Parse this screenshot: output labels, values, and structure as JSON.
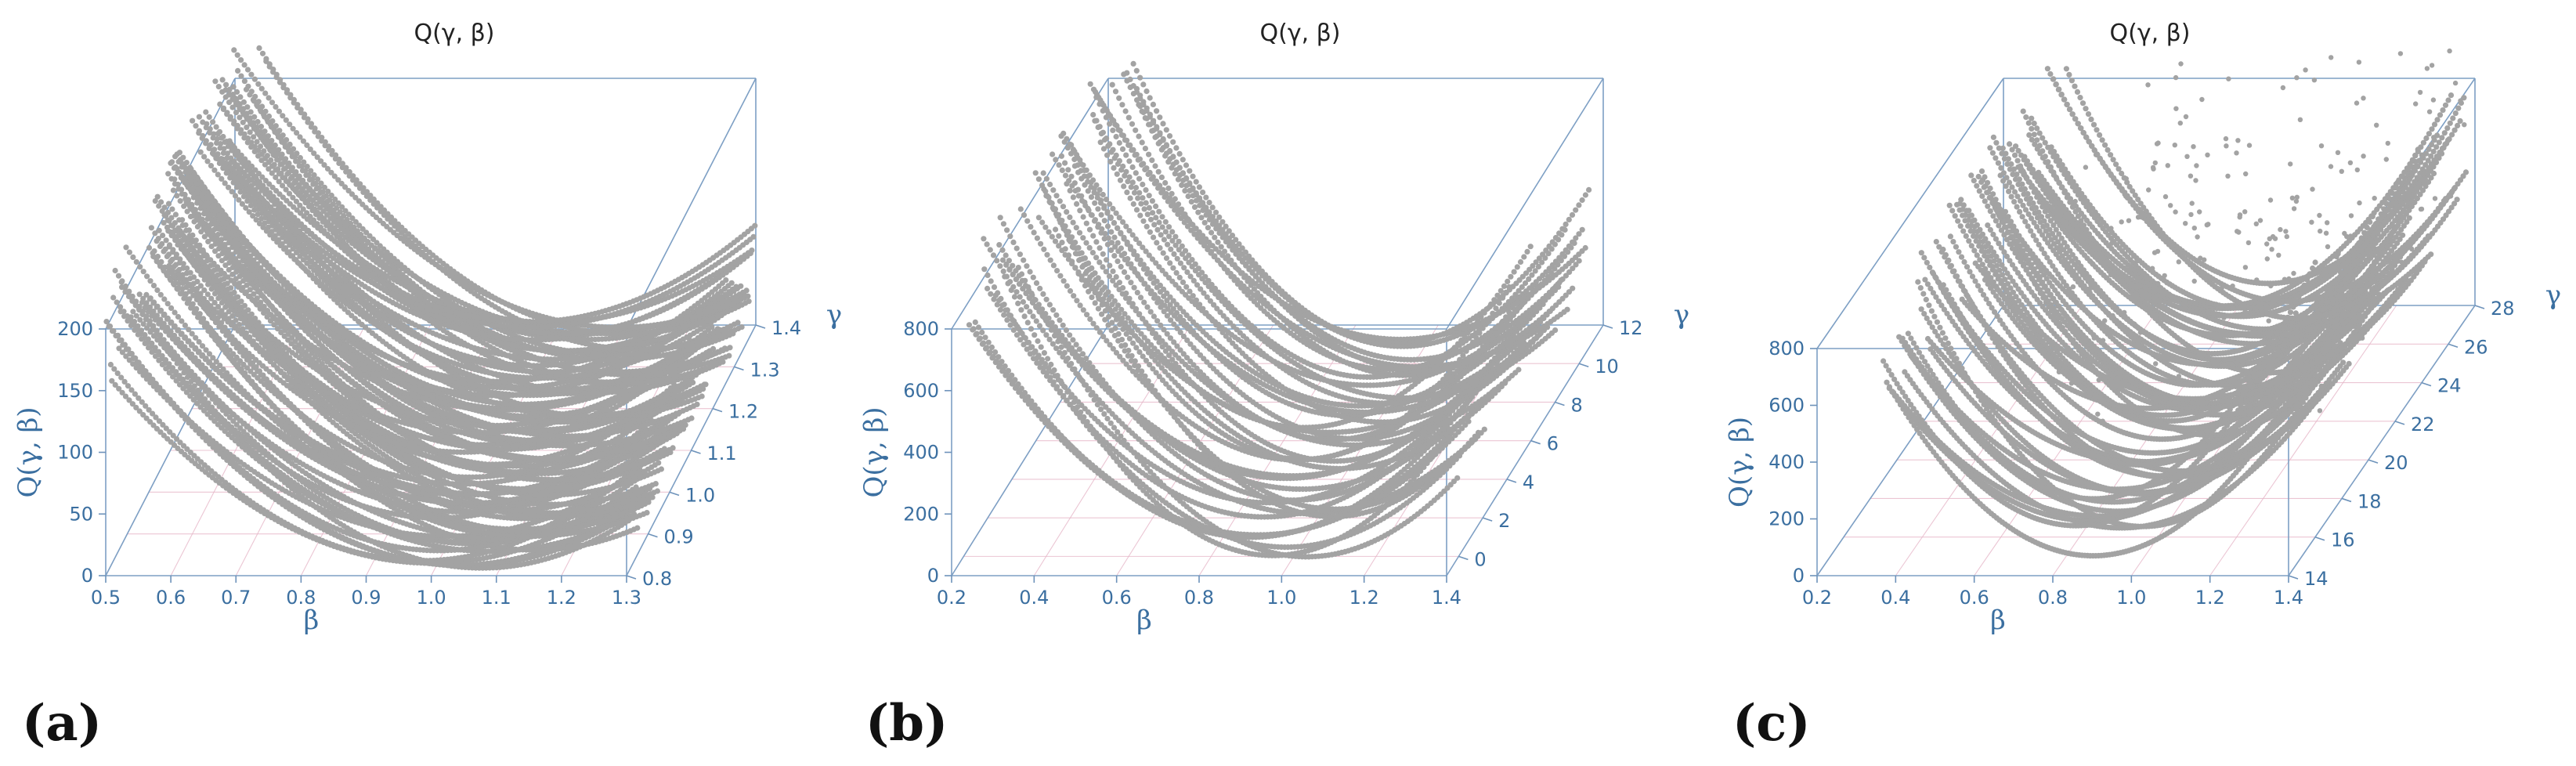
{
  "colors": {
    "axis": "#3b6fa0",
    "box": "#7d9fc4",
    "grid": "#e6b7c8",
    "points": "#a3a3a3"
  },
  "chart_data": [
    {
      "type": "scatter3d",
      "title": "Q(γ, β)",
      "panel_label": "(a)",
      "xlabel": "β",
      "ylabel": "γ",
      "zlabel": "Q(γ, β)",
      "xlim": [
        0.5,
        1.3
      ],
      "ylim": [
        0.8,
        1.4
      ],
      "zlim": [
        0,
        200
      ],
      "xticks": [
        0.5,
        0.6,
        0.7,
        0.8,
        0.9,
        1.0,
        1.1,
        1.2,
        1.3
      ],
      "yticks": [
        0.8,
        0.9,
        1.0,
        1.1,
        1.2,
        1.3,
        1.4
      ],
      "zticks": [
        0,
        50,
        100,
        150,
        200
      ],
      "surface": {
        "gamma_min": 0.8,
        "gamma_max": 1.4,
        "curve_count": 90,
        "beta_range": [
          0.5,
          1.3
        ],
        "min_beta": [
          0.95,
          1.15
        ],
        "min_Q": [
          0,
          12
        ],
        "curvature": [
          590,
          760
        ]
      }
    },
    {
      "type": "scatter3d",
      "title": "Q(γ, β)",
      "panel_label": "(b)",
      "xlabel": "β",
      "ylabel": "γ",
      "zlabel": "Q(γ, β)",
      "xlim": [
        0.2,
        1.4
      ],
      "ylim": [
        -1,
        12
      ],
      "zlim": [
        0,
        800
      ],
      "xticks": [
        0.2,
        0.4,
        0.6,
        0.8,
        1.0,
        1.2,
        1.4
      ],
      "yticks": [
        0,
        2,
        4,
        6,
        8,
        10,
        12
      ],
      "zticks": [
        0,
        200,
        400,
        600,
        800
      ],
      "surface": {
        "gamma_min": -0.5,
        "gamma_max": 11,
        "curve_count": 40,
        "beta_range": [
          0.2,
          1.4
        ],
        "min_beta": [
          0.85,
          1.05
        ],
        "min_Q": [
          0,
          60
        ],
        "curvature": [
          1400,
          2300
        ]
      }
    },
    {
      "type": "scatter3d",
      "title": "Q(γ, β)",
      "panel_label": "(c)",
      "xlabel": "β",
      "ylabel": "γ",
      "zlabel": "Q(γ, β)",
      "xlim": [
        0.2,
        1.4
      ],
      "ylim": [
        14,
        28
      ],
      "zlim": [
        0,
        800
      ],
      "xticks": [
        0.2,
        0.4,
        0.6,
        0.8,
        1.0,
        1.2,
        1.4
      ],
      "yticks": [
        14,
        16,
        18,
        20,
        22,
        24,
        26,
        28
      ],
      "zticks": [
        0,
        200,
        400,
        600,
        800
      ],
      "surface": {
        "gamma_min": 14.5,
        "gamma_max": 27.5,
        "curve_count": 55,
        "beta_range": [
          0.35,
          1.4
        ],
        "min_beta": [
          0.8,
          1.0
        ],
        "min_Q": [
          0,
          160
        ],
        "curvature": [
          1500,
          2700
        ]
      }
    }
  ]
}
